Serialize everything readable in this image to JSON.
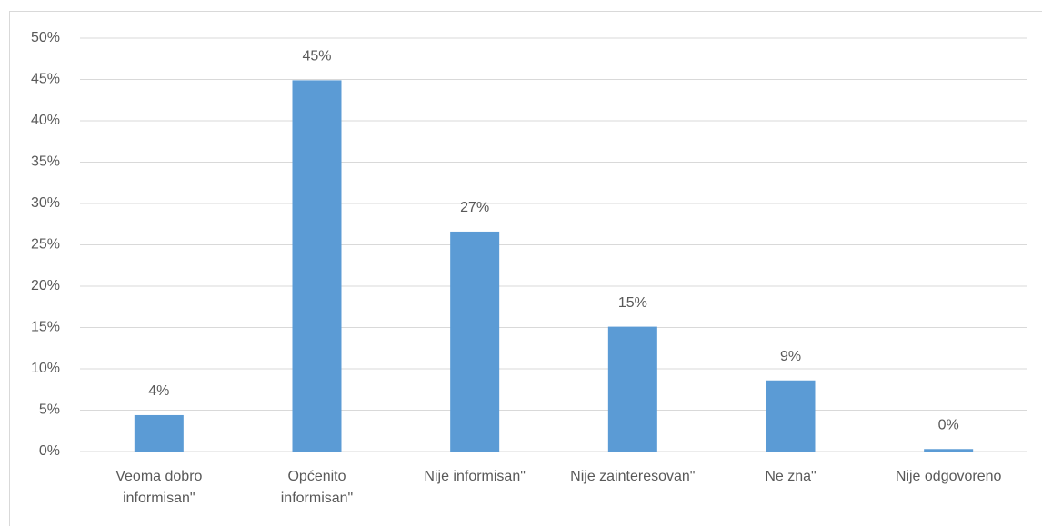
{
  "chart_data": {
    "type": "bar",
    "categories": [
      "Veoma dobro informisan\"",
      "Općenito informisan\"",
      "Nije informisan\"",
      "Nije zainteresovan\"",
      "Ne zna\"",
      "Nije odgovoreno"
    ],
    "values": [
      4.4,
      44.9,
      26.6,
      15.1,
      8.6,
      0.3
    ],
    "value_labels": [
      "4%",
      "45%",
      "27%",
      "15%",
      "9%",
      "0%"
    ],
    "color": "#5b9bd5",
    "ylim": [
      0,
      50
    ],
    "yticks": [
      {
        "value": 0,
        "label": "0%"
      },
      {
        "value": 5,
        "label": "5%"
      },
      {
        "value": 10,
        "label": "10%"
      },
      {
        "value": 15,
        "label": "15%"
      },
      {
        "value": 20,
        "label": "20%"
      },
      {
        "value": 25,
        "label": "25%"
      },
      {
        "value": 30,
        "label": "30%"
      },
      {
        "value": 35,
        "label": "35%"
      },
      {
        "value": 40,
        "label": "40%"
      },
      {
        "value": 45,
        "label": "45%"
      },
      {
        "value": 50,
        "label": "50%"
      }
    ],
    "grid": true
  }
}
